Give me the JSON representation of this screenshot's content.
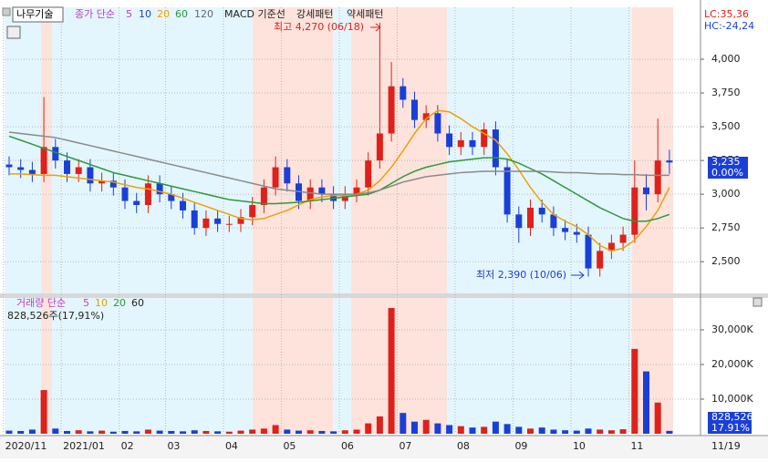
{
  "header": {
    "stock": "나무기술",
    "ma_label": "종가 단순",
    "ma_periods": [
      "5",
      "10",
      "20",
      "60",
      "120"
    ],
    "macd": "MACD 기준선",
    "bull": "강세패턴",
    "bear": "약세패턴",
    "lc": "LC:35,36",
    "hc": "HC:-24,24",
    "volume_label": "거래량 단순",
    "volume_periods": [
      "5",
      "10",
      "20",
      "60"
    ],
    "volume_info": "828,526주(17,91%)"
  },
  "chart_data": [
    {
      "type": "candlestick",
      "up_color": "#e0201a",
      "down_color": "#1a3fd8",
      "categories": [
        "2020/11",
        null,
        null,
        null,
        null,
        "2021/01",
        null,
        null,
        null,
        null,
        "02",
        null,
        null,
        null,
        "03",
        null,
        null,
        null,
        null,
        "04",
        null,
        null,
        null,
        null,
        "05",
        null,
        null,
        null,
        null,
        "06",
        null,
        null,
        null,
        null,
        "07",
        null,
        null,
        null,
        null,
        "08",
        null,
        null,
        null,
        null,
        "09",
        null,
        null,
        null,
        null,
        "10",
        null,
        null,
        null,
        null,
        "11",
        null,
        null,
        "11/19"
      ],
      "open": [
        3220,
        3200,
        3180,
        3150,
        3350,
        3250,
        3150,
        3200,
        3080,
        3100,
        3050,
        2950,
        2920,
        3080,
        3000,
        2950,
        2880,
        2750,
        2820,
        2780,
        2780,
        2830,
        2920,
        3050,
        3200,
        3080,
        2950,
        3050,
        3000,
        2950,
        3000,
        3050,
        3250,
        3450,
        3800,
        3700,
        3550,
        3600,
        3450,
        3350,
        3400,
        3350,
        3480,
        3200,
        2850,
        2750,
        2900,
        2850,
        2750,
        2720,
        2700,
        2450,
        2580,
        2640,
        2700,
        3050,
        3000,
        3250
      ],
      "high": [
        3280,
        3260,
        3240,
        3720,
        3410,
        3310,
        3260,
        3260,
        3160,
        3160,
        3110,
        3010,
        3140,
        3140,
        3060,
        3010,
        2940,
        2880,
        2880,
        2840,
        2890,
        2980,
        3110,
        3280,
        3260,
        3140,
        3110,
        3110,
        3060,
        3060,
        3110,
        3310,
        4270,
        3980,
        3860,
        3760,
        3660,
        3660,
        3510,
        3460,
        3460,
        3530,
        3540,
        3260,
        2910,
        2960,
        2960,
        2910,
        2810,
        2780,
        2760,
        2640,
        2700,
        2760,
        3250,
        3150,
        3560,
        3330
      ],
      "low": [
        3140,
        3120,
        3090,
        3090,
        3190,
        3090,
        3090,
        3020,
        3020,
        2990,
        2890,
        2860,
        2860,
        2940,
        2890,
        2820,
        2700,
        2690,
        2720,
        2720,
        2720,
        2770,
        2860,
        2990,
        3020,
        2890,
        2890,
        2940,
        2890,
        2890,
        2940,
        2990,
        3190,
        3390,
        3640,
        3490,
        3490,
        3390,
        3290,
        3290,
        3290,
        3290,
        3140,
        2790,
        2640,
        2690,
        2790,
        2690,
        2660,
        2640,
        2390,
        2390,
        2520,
        2580,
        2640,
        2880,
        2940,
        3150
      ],
      "close": [
        3200,
        3180,
        3150,
        3350,
        3250,
        3150,
        3200,
        3080,
        3100,
        3050,
        2950,
        2920,
        3080,
        3000,
        2950,
        2880,
        2750,
        2820,
        2780,
        2780,
        2830,
        2920,
        3050,
        3200,
        3080,
        2950,
        3050,
        3000,
        2950,
        3000,
        3050,
        3250,
        3450,
        3800,
        3700,
        3550,
        3600,
        3450,
        3350,
        3400,
        3350,
        3480,
        3200,
        2850,
        2750,
        2900,
        2850,
        2750,
        2720,
        2700,
        2450,
        2580,
        2640,
        2700,
        3050,
        3000,
        3250,
        3235
      ],
      "series": [
        {
          "name": "20",
          "color": "#f0a000",
          "values": [
            3150,
            3150,
            3145,
            3140,
            3140,
            3130,
            3120,
            3110,
            3100,
            3090,
            3070,
            3050,
            3040,
            3020,
            3000,
            2970,
            2940,
            2910,
            2880,
            2850,
            2820,
            2810,
            2820,
            2850,
            2880,
            2920,
            2960,
            2980,
            2990,
            2990,
            3000,
            3030,
            3100,
            3200,
            3320,
            3450,
            3560,
            3620,
            3610,
            3560,
            3500,
            3450,
            3400,
            3300,
            3180,
            3050,
            2940,
            2850,
            2800,
            2760,
            2700,
            2620,
            2580,
            2600,
            2660,
            2760,
            2880,
            3050
          ]
        },
        {
          "name": "60",
          "color": "#2a9a3a",
          "values": [
            3430,
            3400,
            3370,
            3340,
            3310,
            3280,
            3250,
            3220,
            3190,
            3160,
            3140,
            3120,
            3100,
            3080,
            3060,
            3040,
            3020,
            3000,
            2980,
            2960,
            2950,
            2940,
            2930,
            2930,
            2935,
            2940,
            2950,
            2960,
            2970,
            2980,
            2990,
            3000,
            3030,
            3080,
            3130,
            3170,
            3200,
            3220,
            3240,
            3250,
            3260,
            3270,
            3270,
            3260,
            3230,
            3190,
            3150,
            3100,
            3050,
            3000,
            2950,
            2900,
            2860,
            2820,
            2800,
            2800,
            2820,
            2850
          ]
        },
        {
          "name": "120",
          "color": "#8a8a8a",
          "values": [
            3460,
            3450,
            3440,
            3430,
            3420,
            3400,
            3380,
            3360,
            3340,
            3320,
            3300,
            3280,
            3260,
            3240,
            3220,
            3200,
            3180,
            3160,
            3140,
            3120,
            3100,
            3080,
            3060,
            3040,
            3030,
            3020,
            3010,
            3000,
            3000,
            3000,
            3000,
            3010,
            3030,
            3060,
            3090,
            3110,
            3130,
            3140,
            3150,
            3160,
            3165,
            3170,
            3170,
            3170,
            3170,
            3170,
            3170,
            3165,
            3160,
            3160,
            3155,
            3150,
            3150,
            3145,
            3145,
            3140,
            3140,
            3140
          ]
        }
      ],
      "ylim": [
        2265,
        4385
      ],
      "yticks": [
        {
          "value": 2500,
          "label": "2,500"
        },
        {
          "value": 2750,
          "label": "2,750"
        },
        {
          "value": 3000,
          "label": "3,000"
        },
        {
          "value": 3250,
          "label": "3,250"
        },
        {
          "value": 3500,
          "label": "3,500"
        },
        {
          "value": 3750,
          "label": "3,750"
        },
        {
          "value": 4000,
          "label": "4,000"
        }
      ],
      "grid": true,
      "annotations": [
        "최고 4,270 (06/18)",
        "최저 2,390 (10/06)"
      ],
      "last_price": "3,235",
      "last_change": "0.00%"
    },
    {
      "type": "bar",
      "values": [
        900,
        800,
        1200,
        12600,
        1500,
        800,
        1000,
        700,
        900,
        600,
        800,
        700,
        1200,
        900,
        800,
        700,
        1000,
        800,
        700,
        600,
        900,
        1200,
        1500,
        2500,
        1200,
        900,
        1000,
        800,
        700,
        1000,
        1200,
        3000,
        5000,
        36300,
        6000,
        3500,
        4000,
        3000,
        2500,
        2200,
        1800,
        2000,
        3500,
        2800,
        2000,
        1500,
        1800,
        1200,
        1000,
        900,
        1500,
        1200,
        1000,
        1300,
        24500,
        18000,
        9000,
        828.526
      ],
      "ylim": [
        0,
        39200
      ],
      "yticks": [
        {
          "value": 10000,
          "label": "10,000K"
        },
        {
          "value": 20000,
          "label": "20,000K"
        },
        {
          "value": 30000,
          "label": "30,000K"
        }
      ],
      "grid": true,
      "last_volume": "828,526",
      "last_ratio": "17.91%"
    }
  ]
}
